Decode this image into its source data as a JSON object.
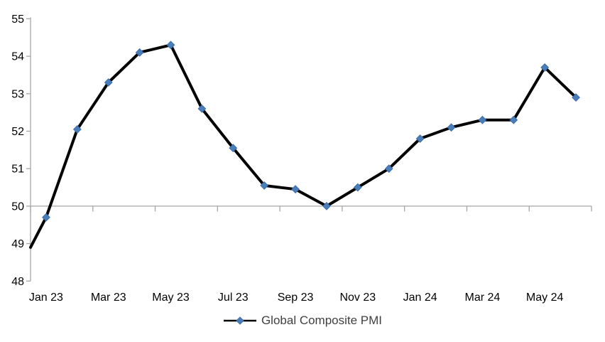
{
  "chart_data": {
    "type": "line",
    "title": "",
    "legend": {
      "label": "Global Composite PMI",
      "position": "bottom-center"
    },
    "x_axis": {
      "tick_labels": [
        "Jan 23",
        "Mar 23",
        "May 23",
        "Jul 23",
        "Sep 23",
        "Nov 23",
        "Jan 24",
        "Mar 24",
        "May 24"
      ],
      "label_interval_months": 2
    },
    "y_axis": {
      "tick_labels": [
        "55",
        "54",
        "53",
        "52",
        "51",
        "50",
        "49",
        "48"
      ],
      "min": 48,
      "max": 55,
      "category_axis_crosses_at": 50
    },
    "grid": "single horizontal line at 50 with downward tick marks",
    "series": [
      {
        "name": "Global Composite PMI",
        "months": [
          "Jan 23",
          "Feb 23",
          "Mar 23",
          "Apr 23",
          "May 23",
          "Jun 23",
          "Jul 23",
          "Aug 23",
          "Sep 23",
          "Oct 23",
          "Nov 23",
          "Dec 23",
          "Jan 24",
          "Feb 24",
          "Mar 24",
          "Apr 24",
          "May 24",
          "Jun 24"
        ],
        "values": [
          49.7,
          52.05,
          53.3,
          54.1,
          54.3,
          52.6,
          51.55,
          50.55,
          50.45,
          50.0,
          50.5,
          51.0,
          51.8,
          52.1,
          52.3,
          52.3,
          53.7,
          52.9
        ],
        "unlabeled_leading_edge_value": 48.9,
        "marker": "diamond"
      }
    ],
    "colors": {
      "line": "#000000",
      "marker_fill": "#4a7ebb",
      "marker_stroke": "#3c6da8",
      "axis": "#a6a6a6",
      "axis_label_text": "#000000",
      "legend_text": "#404040"
    }
  }
}
